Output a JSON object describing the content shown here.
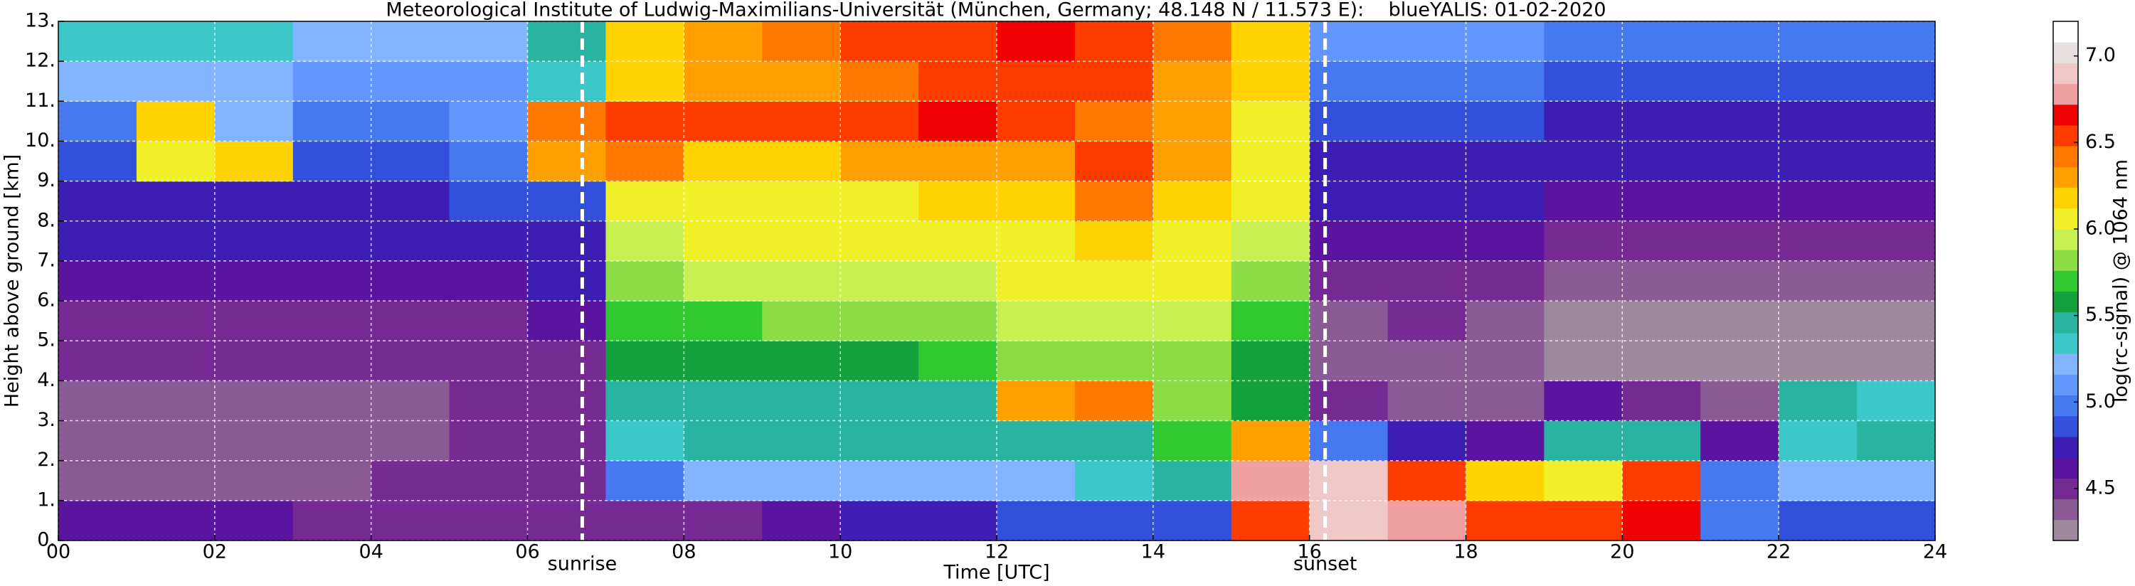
{
  "chart_data": {
    "type": "heatmap",
    "title": "Meteorological Institute of Ludwig-Maximilians-Universität (München, Germany; 48.148 N / 11.573 E):    blueYALIS: 01-02-2020",
    "xlabel": "Time [UTC]",
    "ylabel": "Height above ground [km]",
    "colorbar_label": "log(rc-signal) @ 1064 nm",
    "xlim": [
      0,
      24
    ],
    "xticks": [
      {
        "value": 0,
        "label": "00"
      },
      {
        "value": 2,
        "label": "02"
      },
      {
        "value": 4,
        "label": "04"
      },
      {
        "value": 6,
        "label": "06"
      },
      {
        "value": 8,
        "label": "08"
      },
      {
        "value": 10,
        "label": "10"
      },
      {
        "value": 12,
        "label": "12"
      },
      {
        "value": 14,
        "label": "14"
      },
      {
        "value": 16,
        "label": "16"
      },
      {
        "value": 18,
        "label": "18"
      },
      {
        "value": 20,
        "label": "20"
      },
      {
        "value": 22,
        "label": "22"
      },
      {
        "value": 24,
        "label": "24"
      }
    ],
    "ylim": [
      0,
      13
    ],
    "yticks": [
      {
        "value": 0,
        "label": "0."
      },
      {
        "value": 1,
        "label": "1."
      },
      {
        "value": 2,
        "label": "2."
      },
      {
        "value": 3,
        "label": "3."
      },
      {
        "value": 4,
        "label": "4."
      },
      {
        "value": 5,
        "label": "5."
      },
      {
        "value": 6,
        "label": "6."
      },
      {
        "value": 7,
        "label": "7."
      },
      {
        "value": 8,
        "label": "8."
      },
      {
        "value": 9,
        "label": "9."
      },
      {
        "value": 10,
        "label": "10."
      },
      {
        "value": 11,
        "label": "11."
      },
      {
        "value": 12,
        "label": "12."
      },
      {
        "value": 13,
        "label": "13."
      }
    ],
    "zlim": [
      4.2,
      7.2
    ],
    "zticks": [
      4.5,
      {
        "value": 5,
        "label": "5.0"
      },
      5.5,
      {
        "value": 6,
        "label": "6.0"
      },
      6.5,
      {
        "value": 7,
        "label": "7.0"
      }
    ],
    "colormap": [
      "#9c8a9c",
      "#8a5a94",
      "#762a94",
      "#5a14a0",
      "#3c1eb4",
      "#3250dc",
      "#4678f0",
      "#6496ff",
      "#82b4ff",
      "#3cc8c8",
      "#28b4a0",
      "#14a03c",
      "#32c832",
      "#8cdc46",
      "#c8f050",
      "#f0f028",
      "#ffd200",
      "#ffa000",
      "#ff7800",
      "#ff3c00",
      "#f00000",
      "#f0a0a0",
      "#f0c8c8",
      "#e6e0e0",
      "#ffffff"
    ],
    "grid": true,
    "annotations": [
      {
        "x": 6.7,
        "label": "sunrise"
      },
      {
        "x": 16.2,
        "label": "sunset"
      }
    ],
    "z": [
      [
        4.6,
        4.6,
        4.6,
        4.55,
        4.5,
        4.5,
        4.5,
        4.5,
        4.55,
        4.6,
        4.7,
        4.8,
        4.9,
        4.9,
        4.9,
        6.6,
        6.9,
        6.8,
        6.6,
        6.5,
        6.7,
        5.0,
        4.9,
        4.9
      ],
      [
        4.4,
        4.4,
        4.4,
        4.4,
        4.45,
        4.45,
        4.5,
        5.0,
        5.2,
        5.2,
        5.2,
        5.2,
        5.2,
        5.3,
        5.5,
        6.8,
        6.9,
        6.6,
        6.2,
        6.0,
        6.5,
        5.0,
        5.2,
        5.2
      ],
      [
        4.4,
        4.4,
        4.4,
        4.4,
        4.4,
        4.45,
        4.5,
        5.3,
        5.4,
        5.4,
        5.4,
        5.4,
        5.5,
        5.5,
        5.7,
        6.3,
        5.0,
        4.7,
        4.6,
        5.5,
        5.4,
        4.6,
        5.3,
        5.4
      ],
      [
        4.4,
        4.4,
        4.4,
        4.4,
        4.4,
        4.45,
        4.5,
        5.5,
        5.5,
        5.5,
        5.5,
        5.5,
        6.3,
        6.4,
        5.8,
        5.6,
        4.5,
        4.4,
        4.4,
        4.6,
        4.5,
        4.4,
        5.5,
        5.3
      ],
      [
        4.45,
        4.45,
        4.45,
        4.45,
        4.45,
        4.5,
        4.55,
        5.6,
        5.6,
        5.6,
        5.6,
        5.7,
        5.8,
        5.8,
        5.8,
        5.6,
        4.4,
        4.4,
        4.4,
        4.3,
        4.3,
        4.3,
        4.3,
        4.3
      ],
      [
        4.5,
        4.5,
        4.5,
        4.5,
        4.5,
        4.55,
        4.6,
        5.7,
        5.7,
        5.8,
        5.8,
        5.8,
        5.9,
        5.9,
        5.9,
        5.7,
        4.4,
        4.5,
        4.4,
        4.3,
        4.3,
        4.3,
        4.3,
        4.3
      ],
      [
        4.6,
        4.6,
        4.6,
        4.6,
        4.6,
        4.65,
        4.7,
        5.8,
        5.9,
        5.9,
        5.9,
        5.9,
        6.0,
        6.0,
        6.0,
        5.8,
        4.5,
        4.5,
        4.5,
        4.4,
        4.4,
        4.4,
        4.4,
        4.4
      ],
      [
        4.7,
        4.7,
        4.7,
        4.7,
        4.7,
        4.75,
        4.8,
        5.9,
        6.0,
        6.0,
        6.0,
        6.1,
        6.1,
        6.2,
        6.1,
        5.9,
        4.6,
        4.6,
        4.6,
        4.5,
        4.5,
        4.5,
        4.5,
        4.5
      ],
      [
        4.8,
        4.8,
        4.8,
        4.8,
        4.8,
        4.85,
        4.9,
        6.0,
        6.1,
        6.1,
        6.1,
        6.2,
        6.2,
        6.4,
        6.2,
        6.0,
        4.7,
        4.7,
        4.7,
        4.6,
        4.6,
        4.6,
        4.6,
        4.6
      ],
      [
        4.9,
        6.0,
        6.2,
        4.9,
        4.9,
        4.95,
        6.3,
        6.4,
        6.2,
        6.2,
        6.3,
        6.3,
        6.3,
        6.5,
        6.3,
        6.1,
        4.8,
        4.8,
        4.8,
        4.7,
        4.7,
        4.7,
        4.7,
        4.7
      ],
      [
        5.0,
        6.2,
        5.2,
        5.0,
        5.0,
        5.05,
        6.4,
        6.6,
        6.6,
        6.5,
        6.6,
        6.7,
        6.6,
        6.4,
        6.3,
        6.1,
        4.9,
        4.9,
        4.9,
        4.8,
        4.8,
        4.8,
        4.8,
        4.8
      ],
      [
        5.2,
        5.2,
        5.2,
        5.1,
        5.1,
        5.15,
        5.3,
        6.2,
        6.3,
        6.3,
        6.4,
        6.5,
        6.5,
        6.5,
        6.3,
        6.2,
        5.0,
        5.0,
        5.0,
        4.9,
        4.9,
        4.9,
        4.9,
        4.9
      ],
      [
        5.3,
        5.3,
        5.3,
        5.2,
        5.2,
        5.25,
        5.4,
        6.2,
        6.3,
        6.4,
        6.6,
        6.6,
        6.7,
        6.6,
        6.4,
        6.2,
        5.1,
        5.1,
        5.1,
        5.0,
        5.0,
        5.0,
        5.0,
        5.0
      ]
    ]
  }
}
